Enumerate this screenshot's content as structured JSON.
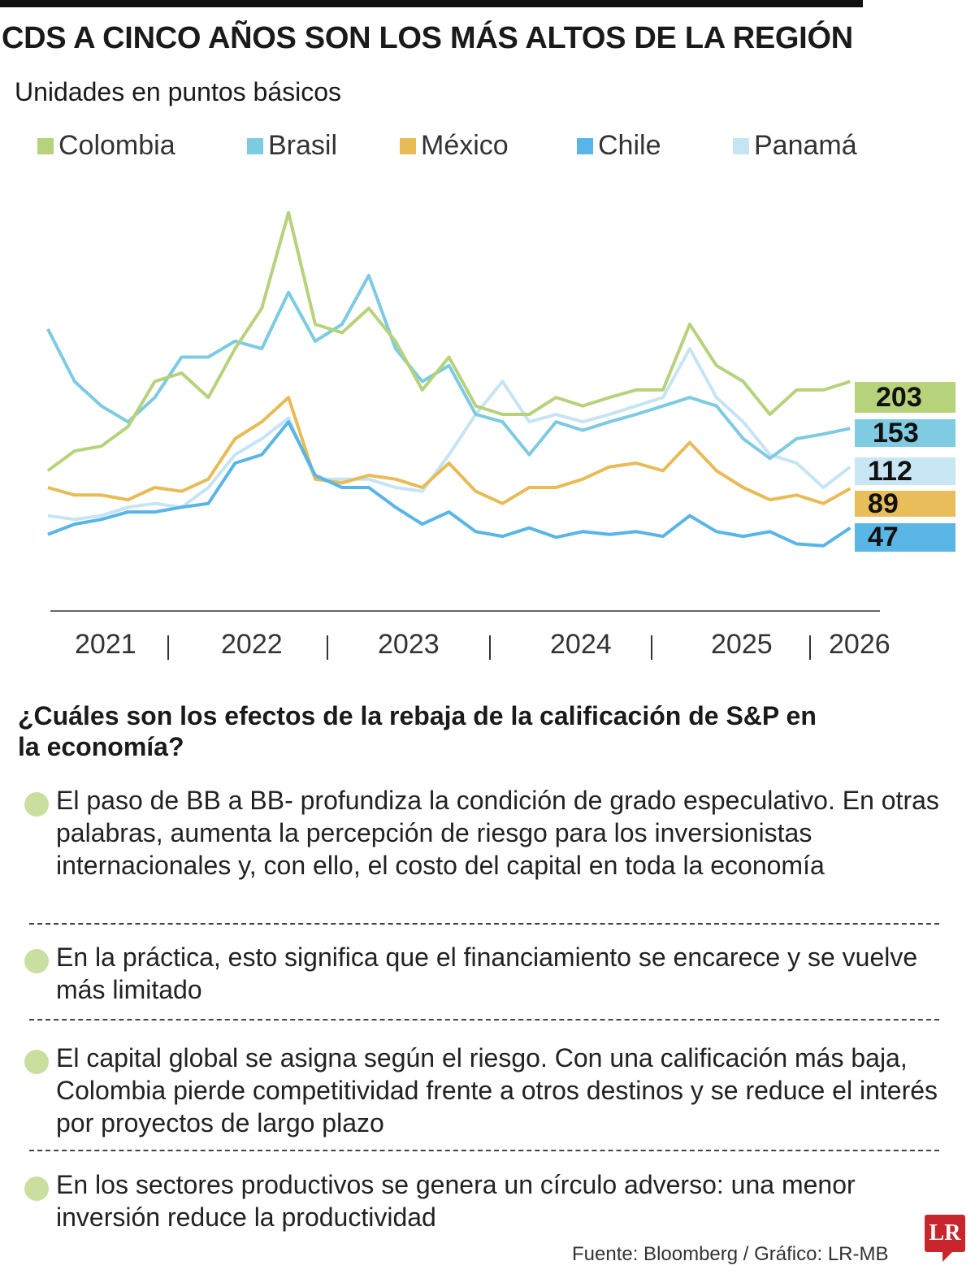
{
  "header": {
    "title": "CDS A CINCO AÑOS SON LOS MÁS ALTOS DE LA REGIÓN",
    "subtitle": "Unidades en puntos básicos"
  },
  "chart_data": {
    "type": "line",
    "title": "CDS A CINCO AÑOS SON LOS MÁS ALTOS DE LA REGIÓN",
    "subtitle": "Unidades en puntos básicos",
    "xlabel": "",
    "ylabel": "",
    "ylim": [
      0,
      400
    ],
    "grid": false,
    "legend_position": "top",
    "x_ticks": [
      "2021",
      "2022",
      "2023",
      "2024",
      "2025",
      "2026"
    ],
    "x": [
      "2021-04",
      "2021-06",
      "2021-08",
      "2021-10",
      "2021-12",
      "2022-02",
      "2022-04",
      "2022-06",
      "2022-08",
      "2022-10",
      "2022-12",
      "2023-02",
      "2023-04",
      "2023-06",
      "2023-08",
      "2023-10",
      "2023-12",
      "2024-02",
      "2024-04",
      "2024-06",
      "2024-08",
      "2024-10",
      "2024-12",
      "2025-02",
      "2025-04",
      "2025-06",
      "2025-08",
      "2025-10",
      "2025-12",
      "2026-02",
      "2026-04"
    ],
    "series": [
      {
        "name": "Colombia",
        "color": "#b6d27a",
        "last_label": "203",
        "values": [
          108,
          129,
          134,
          155,
          203,
          212,
          186,
          238,
          281,
          383,
          264,
          255,
          281,
          246,
          194,
          229,
          177,
          168,
          168,
          186,
          177,
          186,
          194,
          194,
          264,
          220,
          203,
          168,
          194,
          194,
          203
        ]
      },
      {
        "name": "Brasil",
        "color": "#7ccbe3",
        "last_label": "153",
        "values": [
          259,
          203,
          177,
          160,
          186,
          229,
          229,
          246,
          238,
          298,
          246,
          264,
          316,
          238,
          203,
          220,
          168,
          160,
          125,
          160,
          151,
          160,
          168,
          177,
          186,
          177,
          142,
          121,
          142,
          147,
          153
        ]
      },
      {
        "name": "México",
        "color": "#e8bb55",
        "last_label": "89",
        "values": [
          90,
          82,
          82,
          77,
          90,
          86,
          99,
          142,
          160,
          186,
          99,
          95,
          103,
          99,
          90,
          116,
          86,
          73,
          90,
          90,
          99,
          112,
          116,
          108,
          138,
          108,
          90,
          77,
          82,
          73,
          89
        ]
      },
      {
        "name": "Chile",
        "color": "#58b5e8",
        "last_label": "47",
        "values": [
          40,
          51,
          56,
          64,
          64,
          69,
          73,
          116,
          125,
          160,
          103,
          90,
          90,
          69,
          51,
          64,
          43,
          38,
          47,
          37,
          43,
          40,
          43,
          38,
          60,
          43,
          38,
          43,
          30,
          28,
          47
        ]
      },
      {
        "name": "Panamá",
        "color": "#c6e4f3",
        "last_label": "112",
        "values": [
          60,
          56,
          60,
          69,
          73,
          69,
          90,
          125,
          142,
          164,
          99,
          99,
          99,
          90,
          86,
          125,
          168,
          203,
          160,
          168,
          160,
          168,
          177,
          186,
          238,
          186,
          160,
          125,
          116,
          90,
          112
        ]
      }
    ]
  },
  "section": {
    "question": "¿Cuáles son los efectos de la rebaja de la calificación de S&P en la economía?",
    "items": [
      "El paso de BB a BB- profundiza la condición de grado especulativo. En otras palabras, aumenta la percepción de riesgo para los inversionistas internacionales y, con ello, el costo del capital en toda la economía",
      "En la práctica, esto significa que el financiamiento se encarece y se vuelve más limitado",
      "El capital global se asigna según el riesgo. Con una calificación más baja, Colombia pierde competitividad frente a otros destinos y se reduce el interés por proyectos de largo plazo",
      "En los sectores productivos se genera un círculo adverso: una menor inversión reduce la productividad"
    ]
  },
  "footer": {
    "source": "Fuente: Bloomberg / Gráfico: LR-MB",
    "logo_text": "LR"
  }
}
